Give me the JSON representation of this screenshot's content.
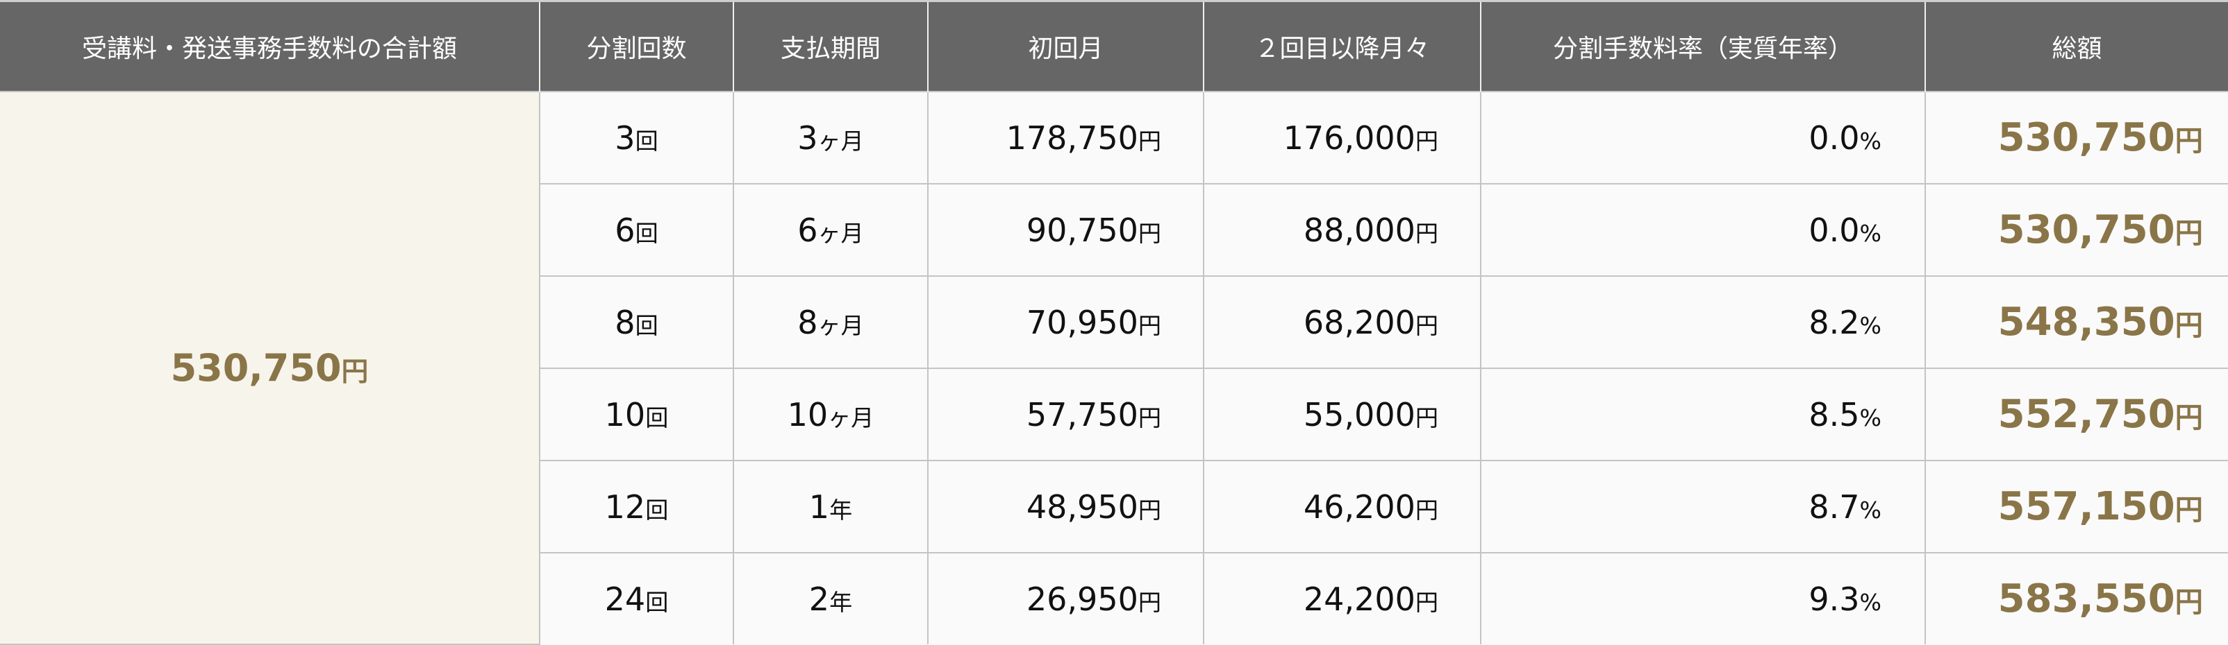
{
  "headers": [
    "受講料・発送事務手数料の合計額",
    "分割回数",
    "支払期間",
    "初回月",
    "２回目以降月々",
    "分割手数料率（実質年率）",
    "総額"
  ],
  "combined_total": {
    "value": "530,750",
    "unit": "円"
  },
  "colors": {
    "header_bg": "#666666",
    "accent_gold": "#8a7548",
    "highlight_bg": "#f7f4ec"
  },
  "rows": [
    {
      "count": "3",
      "count_unit": "回",
      "period": "3",
      "period_unit": "ヶ月",
      "first": "178,750",
      "monthly": "176,000",
      "yen": "円",
      "rate": "0.0",
      "pct": "%",
      "total": "530,750"
    },
    {
      "count": "6",
      "count_unit": "回",
      "period": "6",
      "period_unit": "ヶ月",
      "first": "90,750",
      "monthly": "88,000",
      "yen": "円",
      "rate": "0.0",
      "pct": "%",
      "total": "530,750"
    },
    {
      "count": "8",
      "count_unit": "回",
      "period": "8",
      "period_unit": "ヶ月",
      "first": "70,950",
      "monthly": "68,200",
      "yen": "円",
      "rate": "8.2",
      "pct": "%",
      "total": "548,350"
    },
    {
      "count": "10",
      "count_unit": "回",
      "period": "10",
      "period_unit": "ヶ月",
      "first": "57,750",
      "monthly": "55,000",
      "yen": "円",
      "rate": "8.5",
      "pct": "%",
      "total": "552,750"
    },
    {
      "count": "12",
      "count_unit": "回",
      "period": "1",
      "period_unit": "年",
      "first": "48,950",
      "monthly": "46,200",
      "yen": "円",
      "rate": "8.7",
      "pct": "%",
      "total": "557,150"
    },
    {
      "count": "24",
      "count_unit": "回",
      "period": "2",
      "period_unit": "年",
      "first": "26,950",
      "monthly": "24,200",
      "yen": "円",
      "rate": "9.3",
      "pct": "%",
      "total": "583,550"
    }
  ]
}
